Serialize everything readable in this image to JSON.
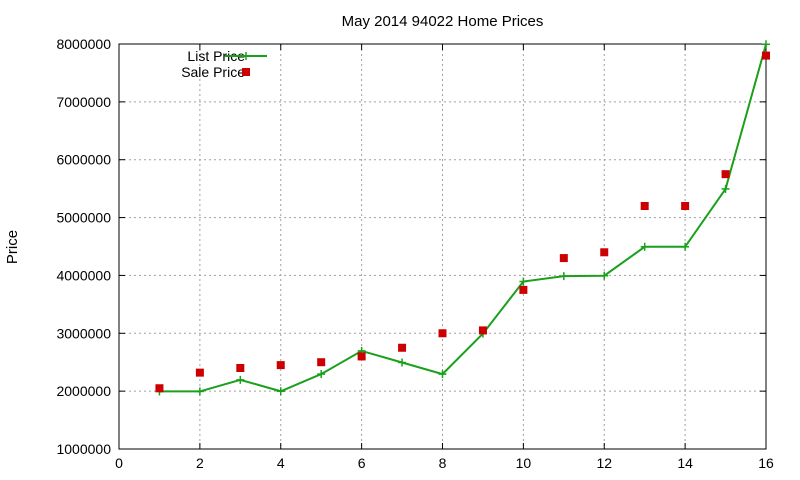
{
  "chart_data": {
    "type": "line",
    "title": "May 2014 94022 Home Prices",
    "xlabel": "",
    "ylabel": "Price",
    "xlim": [
      0,
      16
    ],
    "ylim": [
      1000000,
      8000000
    ],
    "x_ticks": [
      0,
      2,
      4,
      6,
      8,
      10,
      12,
      14,
      16
    ],
    "y_ticks": [
      1000000,
      2000000,
      3000000,
      4000000,
      5000000,
      6000000,
      7000000,
      8000000
    ],
    "grid": true,
    "legend_position": "top-left",
    "series": [
      {
        "name": "List Price",
        "style": "linespoints",
        "marker": "plus",
        "color": "#1aa01a",
        "x": [
          1,
          2,
          3,
          4,
          5,
          6,
          7,
          8,
          9,
          10,
          11,
          12,
          13,
          14,
          15,
          16
        ],
        "values": [
          1995000,
          1995000,
          2195000,
          1998000,
          2295000,
          2695000,
          2495000,
          2295000,
          2995000,
          3895000,
          3988000,
          3995000,
          4495000,
          4495000,
          5495000,
          7995000
        ]
      },
      {
        "name": "Sale Price",
        "style": "points",
        "marker": "square",
        "color": "#cc0000",
        "x": [
          1,
          2,
          3,
          4,
          5,
          6,
          7,
          8,
          9,
          10,
          11,
          12,
          13,
          14,
          15,
          16
        ],
        "values": [
          2050000,
          2320000,
          2400000,
          2450000,
          2500000,
          2600000,
          2750000,
          3000000,
          3050000,
          3750000,
          4300000,
          4400000,
          5200000,
          5200000,
          5750000,
          7800000
        ]
      }
    ]
  }
}
